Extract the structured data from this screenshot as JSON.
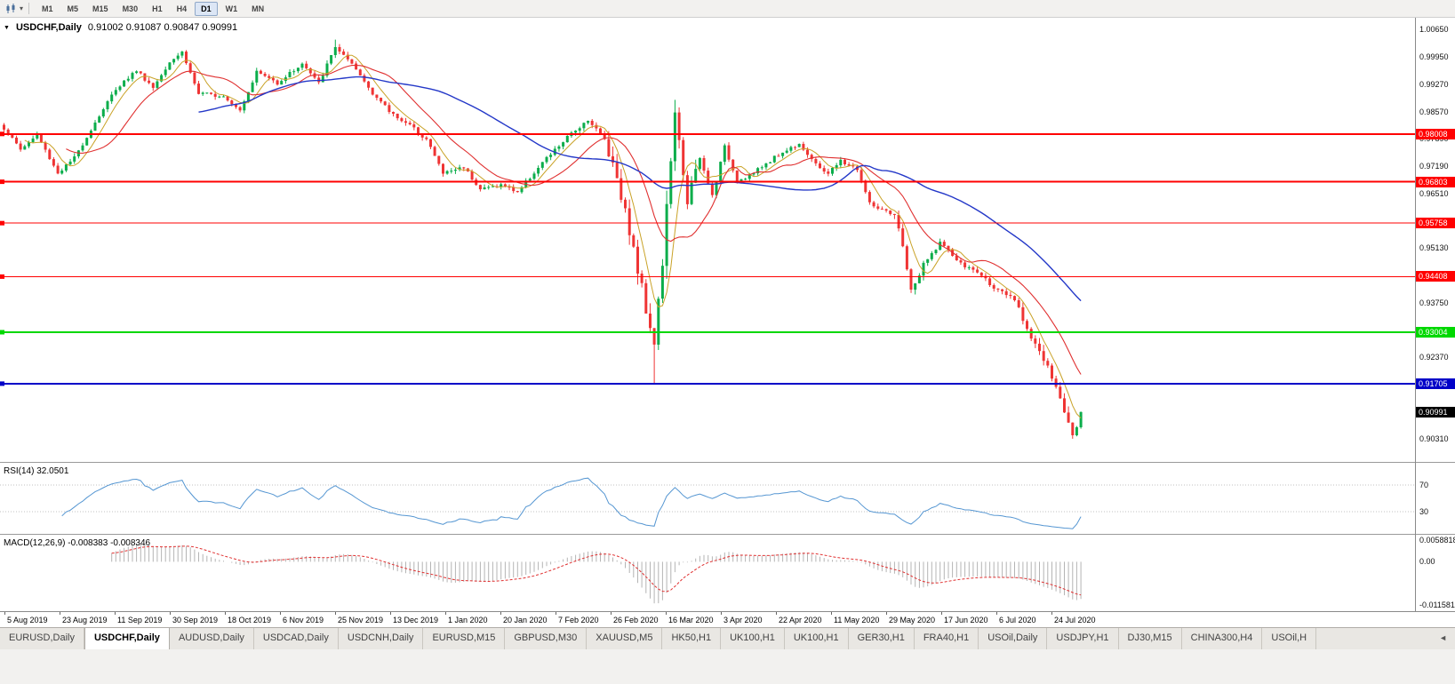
{
  "toolbar": {
    "timeframes": [
      "M1",
      "M5",
      "M15",
      "M30",
      "H1",
      "H4",
      "D1",
      "W1",
      "MN"
    ],
    "active_timeframe": "D1"
  },
  "chart": {
    "symbol_period": "USDCHF,Daily",
    "ohlc": "0.91002 0.91087 0.90847 0.90991",
    "colors": {
      "bull": "#0BAD4B",
      "bear": "#EF3434",
      "ma_fast": "#C9A227",
      "ma_mid": "#E03030",
      "ma_slow": "#2438C8"
    },
    "price_axis_labels": [
      "1.00650",
      "0.99950",
      "0.99270",
      "0.98570",
      "0.97890",
      "0.97190",
      "0.96510",
      "0.95810",
      "0.95130",
      "0.94430",
      "0.93750",
      "0.93050",
      "0.92370",
      "0.91670",
      "0.90310"
    ],
    "levels": [
      {
        "value": "0.98008",
        "color": "#FF0000",
        "thickness": 2
      },
      {
        "value": "0.96803",
        "color": "#FF0000",
        "thickness": 2
      },
      {
        "value": "0.95758",
        "color": "#FF0000",
        "thickness": 1
      },
      {
        "value": "0.94408",
        "color": "#FF0000",
        "thickness": 1
      },
      {
        "value": "0.93004",
        "color": "#00D800",
        "thickness": 2
      },
      {
        "value": "0.91705",
        "color": "#0000C8",
        "thickness": 2
      }
    ],
    "current_price": {
      "value": "0.90991",
      "bg": "#000000"
    },
    "price_path": [
      [
        0,
        0.9815
      ],
      [
        4,
        0.9762
      ],
      [
        8,
        0.9798
      ],
      [
        13,
        0.9702
      ],
      [
        17,
        0.974
      ],
      [
        22,
        0.983
      ],
      [
        27,
        0.9915
      ],
      [
        32,
        0.9962
      ],
      [
        36,
        0.9918
      ],
      [
        40,
        0.9985
      ],
      [
        43,
        1.0008
      ],
      [
        47,
        0.9902
      ],
      [
        53,
        0.9898
      ],
      [
        57,
        0.9862
      ],
      [
        61,
        0.9958
      ],
      [
        66,
        0.993
      ],
      [
        72,
        0.9978
      ],
      [
        76,
        0.9928
      ],
      [
        80,
        1.0022
      ],
      [
        82,
        0.9998
      ],
      [
        85,
        0.9962
      ],
      [
        89,
        0.9905
      ],
      [
        93,
        0.9858
      ],
      [
        98,
        0.9822
      ],
      [
        102,
        0.9788
      ],
      [
        106,
        0.9702
      ],
      [
        111,
        0.9718
      ],
      [
        115,
        0.9662
      ],
      [
        120,
        0.9672
      ],
      [
        124,
        0.9655
      ],
      [
        130,
        0.9728
      ],
      [
        136,
        0.9792
      ],
      [
        141,
        0.9838
      ],
      [
        145,
        0.9788
      ],
      [
        148,
        0.9695
      ],
      [
        151,
        0.9558
      ],
      [
        154,
        0.9408
      ],
      [
        157,
        0.9282
      ],
      [
        159,
        0.9475
      ],
      [
        161,
        0.9742
      ],
      [
        162,
        0.9845
      ],
      [
        165,
        0.9635
      ],
      [
        168,
        0.9738
      ],
      [
        171,
        0.9645
      ],
      [
        174,
        0.9768
      ],
      [
        177,
        0.9682
      ],
      [
        181,
        0.9702
      ],
      [
        186,
        0.9742
      ],
      [
        192,
        0.9778
      ],
      [
        196,
        0.9722
      ],
      [
        199,
        0.9702
      ],
      [
        202,
        0.9732
      ],
      [
        206,
        0.9712
      ],
      [
        209,
        0.9625
      ],
      [
        212,
        0.9608
      ],
      [
        215,
        0.9592
      ],
      [
        217,
        0.9522
      ],
      [
        219,
        0.9402
      ],
      [
        222,
        0.9468
      ],
      [
        226,
        0.9528
      ],
      [
        231,
        0.9472
      ],
      [
        235,
        0.9452
      ],
      [
        240,
        0.9405
      ],
      [
        244,
        0.9382
      ],
      [
        247,
        0.9312
      ],
      [
        250,
        0.9252
      ],
      [
        253,
        0.9185
      ],
      [
        256,
        0.9102
      ],
      [
        258,
        0.9048
      ],
      [
        259,
        0.9068
      ],
      [
        260,
        0.9099
      ]
    ]
  },
  "rsi": {
    "label": "RSI(14) 32.0501",
    "levels": [
      "70",
      "30"
    ],
    "line_color": "#5596D2"
  },
  "macd": {
    "label": "MACD(12,26,9) -0.008383 -0.008346",
    "axis_labels": [
      "0.0058818",
      "0.00",
      "-0.0115814"
    ],
    "histogram_color": "#B4B4B4",
    "signal_color": "#E03030"
  },
  "date_axis": {
    "labels": [
      "5 Aug 2019",
      "23 Aug 2019",
      "11 Sep 2019",
      "30 Sep 2019",
      "18 Oct 2019",
      "6 Nov 2019",
      "25 Nov 2019",
      "13 Dec 2019",
      "1 Jan 2020",
      "20 Jan 2020",
      "7 Feb 2020",
      "26 Feb 2020",
      "16 Mar 2020",
      "3 Apr 2020",
      "22 Apr 2020",
      "11 May 2020",
      "29 May 2020",
      "17 Jun 2020",
      "6 Jul 2020",
      "24 Jul 2020"
    ]
  },
  "tabs": {
    "items": [
      "EURUSD,Daily",
      "USDCHF,Daily",
      "AUDUSD,Daily",
      "USDCAD,Daily",
      "USDCNH,Daily",
      "EURUSD,M15",
      "GBPUSD,M30",
      "XAUUSD,M5",
      "HK50,H1",
      "UK100,H1",
      "UK100,H1",
      "GER30,H1",
      "FRA40,H1",
      "USOil,Daily",
      "USDJPY,H1",
      "DJ30,M15",
      "CHINA300,H4",
      "USOil,H"
    ],
    "active_index": 1,
    "scroll_left_arrow": "◄"
  }
}
